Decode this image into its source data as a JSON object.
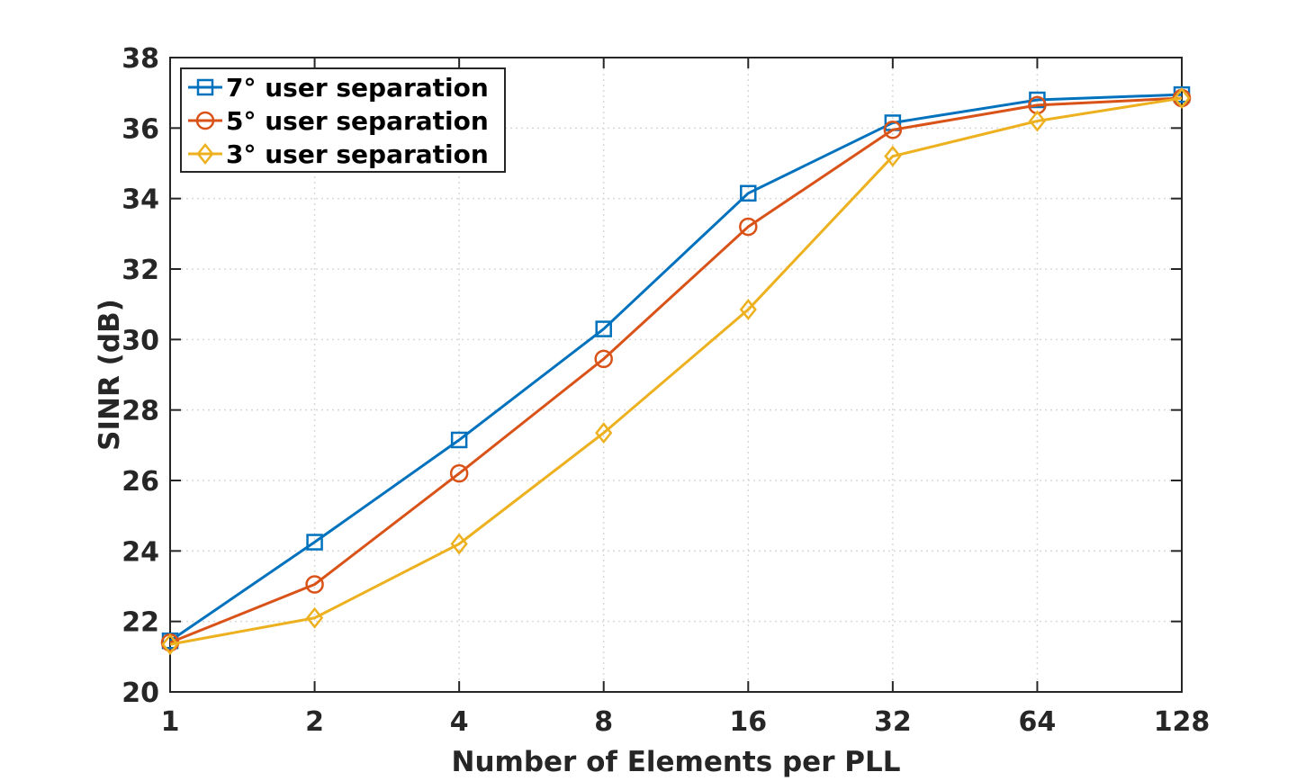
{
  "chart_data": {
    "type": "line",
    "title": "",
    "xlabel": "Number of Elements per PLL",
    "ylabel": "SINR (dB)",
    "x_scale": "log2",
    "categories": [
      "1",
      "2",
      "4",
      "8",
      "16",
      "32",
      "64",
      "128"
    ],
    "x": [
      1,
      2,
      4,
      8,
      16,
      32,
      64,
      128
    ],
    "ylim": [
      20,
      38
    ],
    "yticks": [
      20,
      22,
      24,
      26,
      28,
      30,
      32,
      34,
      36,
      38
    ],
    "grid": true,
    "legend_position": "top-left",
    "series": [
      {
        "name": "7° user separation",
        "color": "#0072BD",
        "marker": "square",
        "values": [
          21.45,
          24.25,
          27.15,
          30.3,
          34.15,
          36.15,
          36.8,
          36.95
        ]
      },
      {
        "name": "5° user separation",
        "color": "#D95319",
        "marker": "circle",
        "values": [
          21.4,
          23.05,
          26.2,
          29.45,
          33.2,
          35.95,
          36.65,
          36.85
        ]
      },
      {
        "name": "3° user separation",
        "color": "#EDB120",
        "marker": "diamond",
        "values": [
          21.35,
          22.1,
          24.2,
          27.35,
          30.85,
          35.2,
          36.2,
          36.85
        ]
      }
    ]
  }
}
